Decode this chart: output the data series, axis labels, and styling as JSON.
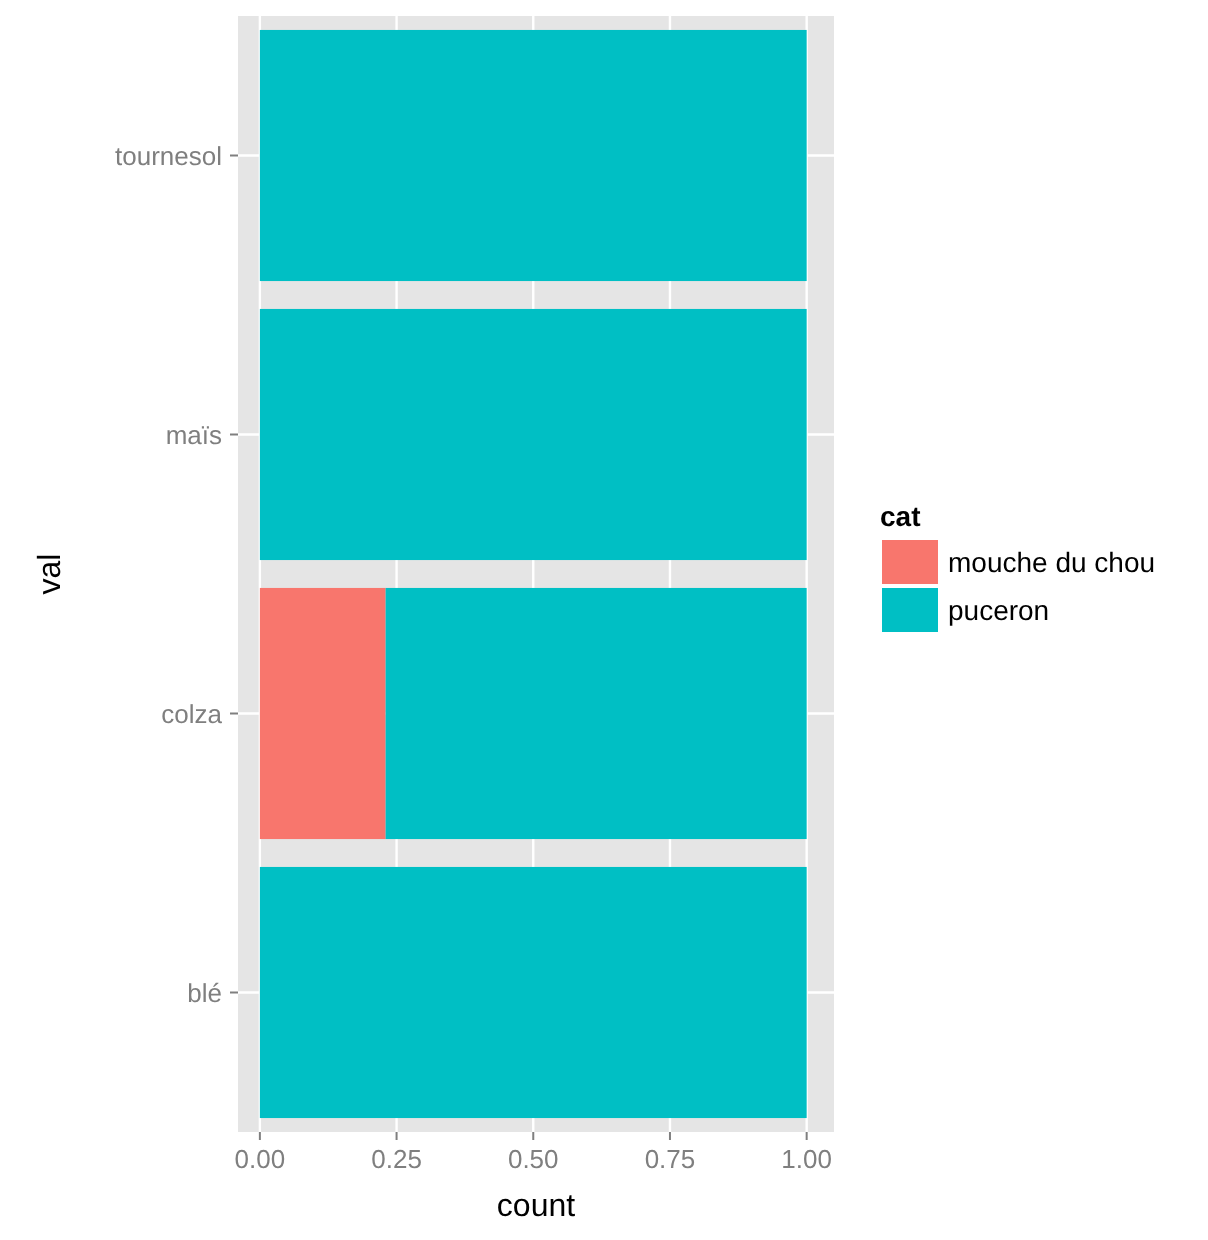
{
  "chart_data": {
    "type": "bar",
    "orientation": "horizontal",
    "stacked": true,
    "xlabel": "count",
    "ylabel": "val",
    "legend_title": "cat",
    "legend": "right",
    "grid": true,
    "categories": [
      "tournesol",
      "maïs",
      "colza",
      "blé"
    ],
    "series": [
      {
        "name": "mouche du chou",
        "color": "#f8766d",
        "values": [
          0,
          0,
          0.23,
          0
        ]
      },
      {
        "name": "puceron",
        "color": "#00bfc4",
        "values": [
          1,
          1,
          0.77,
          1
        ]
      }
    ],
    "xlim": [
      -0.04,
      1.05
    ],
    "xticks": [
      {
        "value": 0,
        "label": "0.00"
      },
      {
        "value": 0.25,
        "label": "0.25"
      },
      {
        "value": 0.5,
        "label": "0.50"
      },
      {
        "value": 0.75,
        "label": "0.75"
      },
      {
        "value": 1,
        "label": "1.00"
      }
    ]
  }
}
